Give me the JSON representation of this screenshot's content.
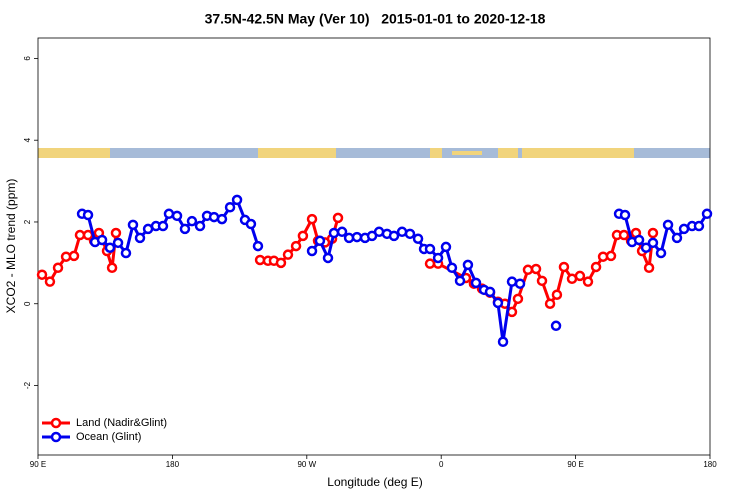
{
  "chart_data": {
    "type": "line",
    "title": "37.5N-42.5N May (Ver 10)   2015-01-01 to 2020-12-18",
    "xlabel": "Longitude (deg E)",
    "ylabel": "XCO2 - MLO trend (ppm)",
    "xlim": [
      90,
      540
    ],
    "xticks": [
      {
        "value": 90,
        "label": "90 E"
      },
      180,
      {
        "value": 270,
        "label": "90 W"
      },
      {
        "value": 360,
        "label": "0"
      },
      {
        "value": 450,
        "label": "90 E"
      },
      {
        "value": 540,
        "label": "180"
      }
    ],
    "ylim": [
      -3.7,
      6.5
    ],
    "yticks": [
      -2,
      0,
      2,
      4,
      6
    ],
    "legend": "bottom-left",
    "series": [
      {
        "name": "Land (Nadir&Glint)",
        "color": "#ff0000",
        "x": [
          92.7,
          98.0,
          103.4,
          108.8,
          114.1,
          118.1,
          123.5,
          127.5,
          130.8,
          136.2,
          139.6,
          142.2,
          null,
          238.7,
          244.0,
          248.0,
          252.7,
          257.4,
          262.8,
          267.4,
          273.5,
          277.5,
          282.2,
          286.9,
          290.9,
          null,
          352.5,
          357.9,
          376.6,
          381.9,
          387.3,
          392.7,
          398.0,
          402.7,
          407.4,
          411.4,
          418.1,
          423.5,
          427.5,
          432.9,
          437.5,
          442.2,
          447.6,
          452.9,
          458.3,
          463.7,
          468.4,
          473.7,
          477.7,
          482.4,
          487.1,
          490.4,
          494.5,
          499.2,
          501.8
        ],
        "values": [
          0.71,
          0.54,
          0.88,
          1.15,
          1.17,
          1.68,
          1.68,
          1.54,
          1.73,
          1.29,
          0.88,
          1.73,
          null,
          1.07,
          1.05,
          1.05,
          1.0,
          1.2,
          1.41,
          1.66,
          2.07,
          1.54,
          1.5,
          1.59,
          2.1,
          null,
          0.98,
          0.98,
          0.63,
          0.49,
          0.37,
          0.27,
          0.05,
          0.0,
          -0.2,
          0.12,
          0.83,
          0.85,
          0.56,
          0.0,
          0.22,
          0.9,
          0.61,
          0.68,
          0.54,
          0.9,
          1.15,
          1.17,
          1.68,
          1.68,
          1.54,
          1.73,
          1.29,
          0.88,
          1.73
        ]
      },
      {
        "name": "Ocean (Glint)",
        "color": "#0000ee",
        "x": [
          119.5,
          123.5,
          128.2,
          132.9,
          138.2,
          143.6,
          148.9,
          153.6,
          158.3,
          163.7,
          169.0,
          173.7,
          177.7,
          183.1,
          188.4,
          193.1,
          198.5,
          203.2,
          207.9,
          213.2,
          218.6,
          223.3,
          228.6,
          232.6,
          237.3,
          null,
          273.5,
          278.8,
          284.2,
          288.2,
          293.6,
          298.3,
          303.6,
          309.0,
          313.7,
          318.4,
          323.7,
          328.4,
          333.8,
          339.1,
          344.5,
          348.5,
          352.5,
          357.9,
          363.2,
          367.2,
          372.6,
          377.9,
          383.3,
          388.7,
          392.7,
          398.0,
          401.4,
          407.4,
          412.8,
          null,
          436.9,
          null,
          479.1,
          483.1,
          487.8,
          492.5,
          497.2,
          501.8,
          507.2,
          511.9,
          517.9,
          522.6,
          528.0,
          532.6,
          538.0
        ],
        "values": [
          2.2,
          2.17,
          1.51,
          1.56,
          1.37,
          1.49,
          1.24,
          1.93,
          1.61,
          1.83,
          1.9,
          1.9,
          2.2,
          2.15,
          1.83,
          2.02,
          1.9,
          2.15,
          2.12,
          2.07,
          2.36,
          2.54,
          2.05,
          1.95,
          1.41,
          null,
          1.29,
          1.54,
          1.12,
          1.73,
          1.76,
          1.61,
          1.63,
          1.61,
          1.66,
          1.76,
          1.71,
          1.66,
          1.76,
          1.71,
          1.59,
          1.34,
          1.34,
          1.12,
          1.39,
          0.88,
          0.56,
          0.95,
          0.51,
          0.34,
          0.29,
          0.02,
          -0.93,
          0.54,
          0.49,
          null,
          -0.54,
          null,
          2.2,
          2.17,
          1.51,
          1.56,
          1.37,
          1.49,
          1.24,
          1.93,
          1.61,
          1.83,
          1.9,
          1.9,
          2.2
        ]
      }
    ]
  }
}
